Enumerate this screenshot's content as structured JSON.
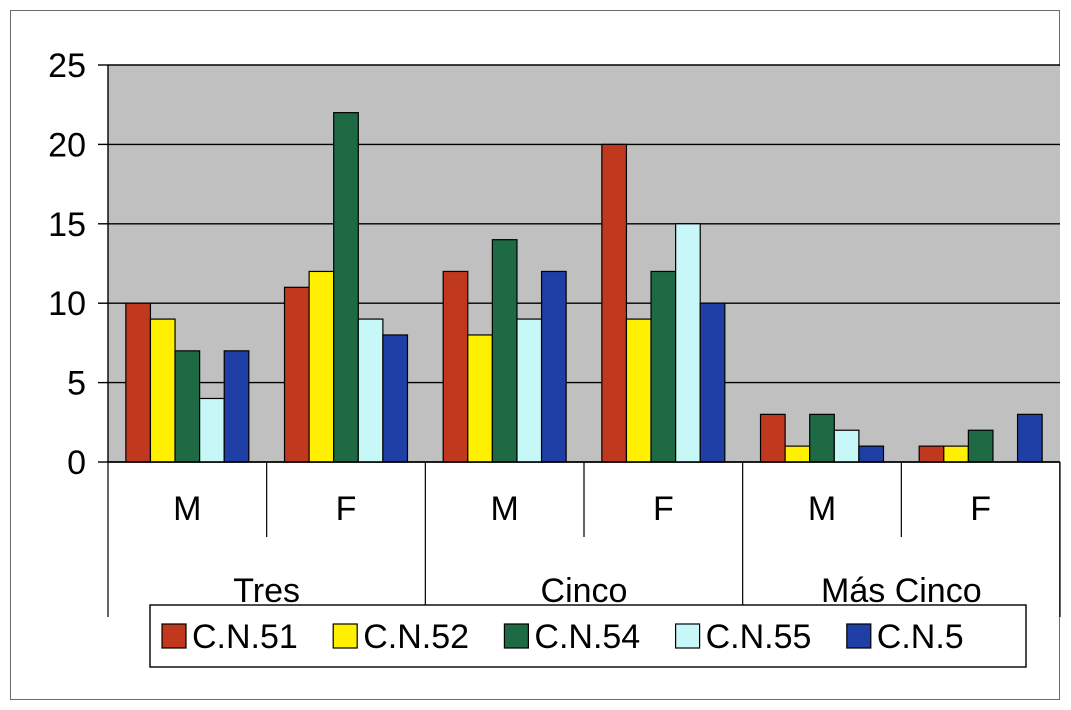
{
  "chart_data": {
    "type": "bar",
    "title": "",
    "xlabel": "",
    "ylabel": "",
    "ylim": [
      0,
      25
    ],
    "yticks": [
      0,
      5,
      10,
      15,
      20,
      25
    ],
    "grid": true,
    "legend_position": "bottom",
    "groups": [
      {
        "label": "Tres",
        "categories": [
          "M",
          "F"
        ]
      },
      {
        "label": "Cinco",
        "categories": [
          "M",
          "F"
        ]
      },
      {
        "label": "Más Cinco",
        "categories": [
          "M",
          "F"
        ]
      }
    ],
    "categories": [
      "M",
      "F",
      "M",
      "F",
      "M",
      "F"
    ],
    "series": [
      {
        "name": "C.N.51",
        "color": "#c0391f",
        "values": [
          10,
          11,
          12,
          20,
          3,
          1
        ]
      },
      {
        "name": "C.N.52",
        "color": "#ffef00",
        "values": [
          9,
          12,
          8,
          9,
          1,
          1
        ]
      },
      {
        "name": "C.N.54",
        "color": "#1d6a45",
        "values": [
          7,
          22,
          14,
          12,
          3,
          2
        ]
      },
      {
        "name": "C.N.55",
        "color": "#c8f7f7",
        "values": [
          4,
          9,
          9,
          15,
          2,
          0
        ]
      },
      {
        "name": "C.N.5",
        "color": "#1f3fa6",
        "values": [
          7,
          8,
          12,
          10,
          1,
          3
        ]
      }
    ],
    "plot_background": "#c0c0c0"
  }
}
